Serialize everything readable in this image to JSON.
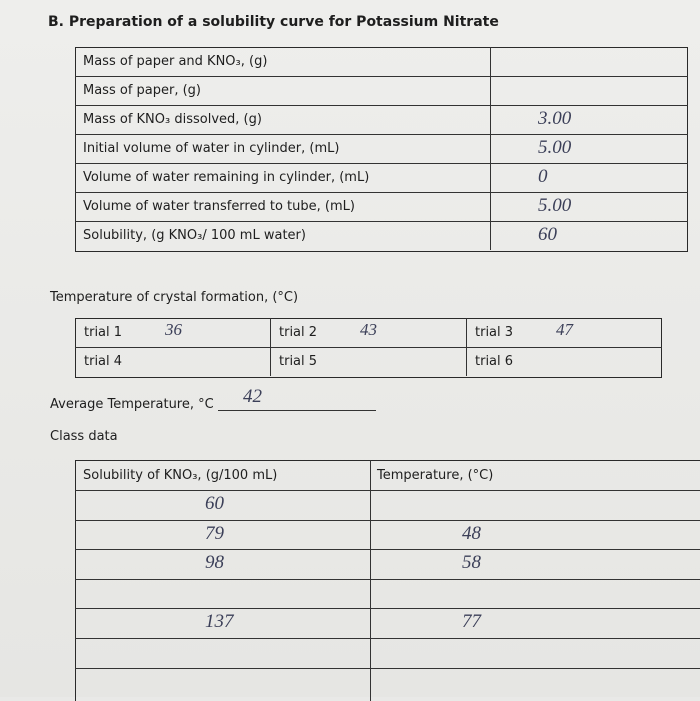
{
  "title": "B. Preparation of a solubility curve for Potassium Nitrate",
  "table": {
    "rows": [
      {
        "label": "Mass of paper and KNO₃, (g)"
      },
      {
        "label": "Mass of paper, (g)"
      },
      {
        "label": "Mass of KNO₃ dissolved, (g)",
        "value": "3.00"
      },
      {
        "label": "Initial volume of water in cylinder, (mL)",
        "value": "5.00"
      },
      {
        "label": "Volume of water remaining in cylinder, (mL)",
        "value": "0"
      },
      {
        "label": "Volume of water transferred to tube, (mL)",
        "value": "5.00"
      },
      {
        "label": "Solubility, (g KNO₃/ 100 mL water)",
        "value": "60"
      }
    ]
  },
  "trials": {
    "heading": "Temperature of crystal formation, (°C)",
    "rows": [
      [
        {
          "label": "trial 1",
          "value": "36"
        },
        {
          "label": "trial 2",
          "value": "43"
        },
        {
          "label": "trial 3",
          "value": "47"
        }
      ],
      [
        {
          "label": "trial 4"
        },
        {
          "label": "trial 5"
        },
        {
          "label": "trial 6"
        }
      ]
    ]
  },
  "average": {
    "label": "Average Temperature, °C",
    "value": "42"
  },
  "class_data": {
    "heading": "Class data",
    "headers": [
      "Solubility of KNO₃, (g/100 mL)",
      "Temperature, (°C)"
    ],
    "rows": [
      {
        "solubility": "60"
      },
      {
        "solubility": "79",
        "temperature": "48"
      },
      {
        "solubility": "98",
        "temperature": "58"
      },
      {},
      {
        "solubility": "137",
        "temperature": "77"
      },
      {},
      {}
    ]
  }
}
